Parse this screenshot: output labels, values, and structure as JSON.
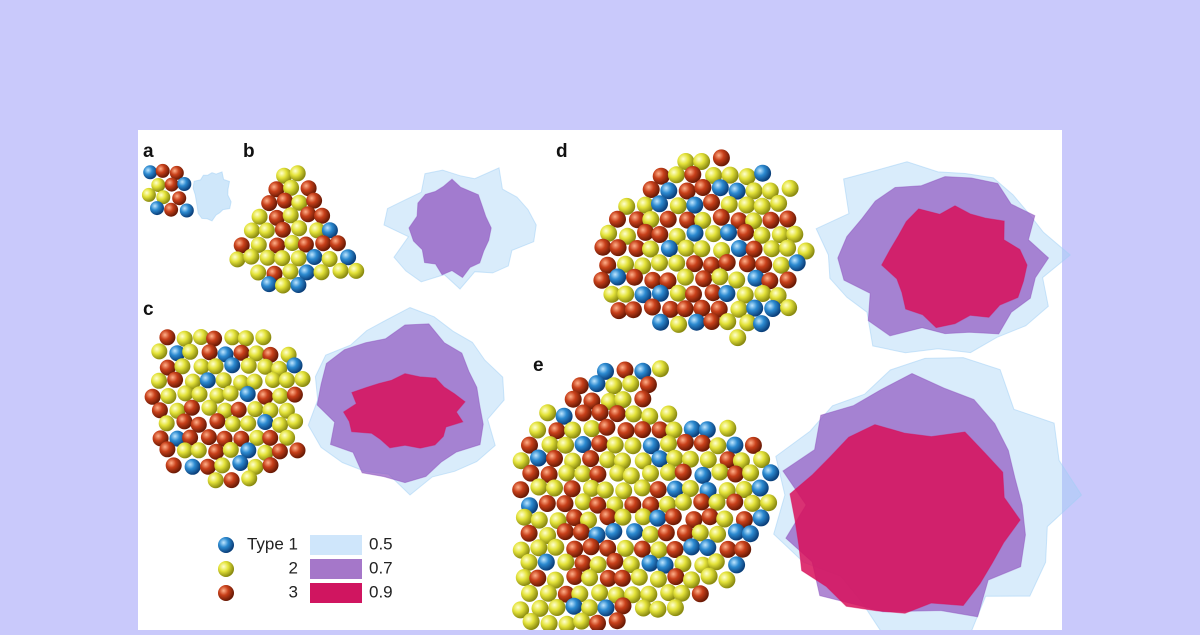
{
  "panels": {
    "a": "a",
    "b": "b",
    "c": "c",
    "d": "d",
    "e": "e"
  },
  "legend": {
    "atom_types": [
      "Type 1",
      "2",
      "3"
    ],
    "densities": [
      "0.5",
      "0.7",
      "0.9"
    ]
  }
}
